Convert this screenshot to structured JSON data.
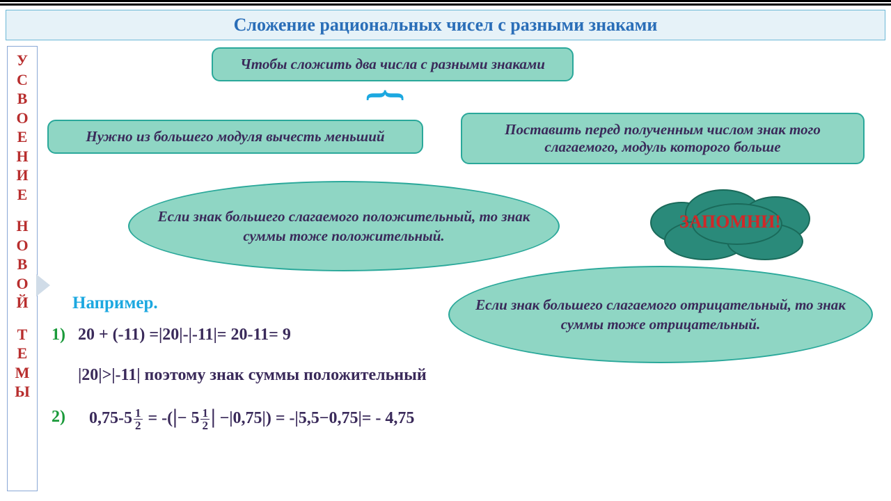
{
  "colors": {
    "title_bg": "#e6f2f8",
    "title_text": "#2a6eb8",
    "sidebar_text": "#b82e2e",
    "box_bg": "#8fd6c4",
    "box_border": "#2aa89a",
    "box_text": "#3a2a5a",
    "brace": "#1ca8e0",
    "cloud_bg": "#2a8a7a",
    "cloud_text": "#d02828",
    "example_label": "#1ca8e0",
    "num_label": "#1a9a3a",
    "formula": "#3a2a5a"
  },
  "title": "Сложение рациональных чисел с разными знаками",
  "sidebar_words": [
    "УСВОЕНИЕ",
    "НОВОЙ",
    "ТЕМЫ"
  ],
  "rule_box": "Чтобы сложить два числа с разными знаками",
  "step1": "Нужно из большего модуля вычесть меньший",
  "step2": "Поставить перед полученным числом знак того слагаемого, модуль которого больше",
  "ellipse1": "Если знак большего слагаемого положительный, то знак суммы тоже положительный.",
  "ellipse2": "Если знак большего слагаемого отрицательный, то знак суммы тоже отрицательный.",
  "cloud_label": "ЗАПОМНИ!",
  "example_heading": "Например.",
  "ex1_num": "1)",
  "ex1_line1": "20 + (-11) =|20|-|-11|= 20-11= 9",
  "ex1_line2": "|20|>|-11|  поэтому знак суммы положительный",
  "ex2_num": "2)",
  "ex2": {
    "a": "0,75-5",
    "b": " =  -(",
    "c": "− 5",
    "d": " −|0,75|)  = -|5,5−0,75|=  - 4,75",
    "frac_top": "1",
    "frac_bot": "2"
  }
}
